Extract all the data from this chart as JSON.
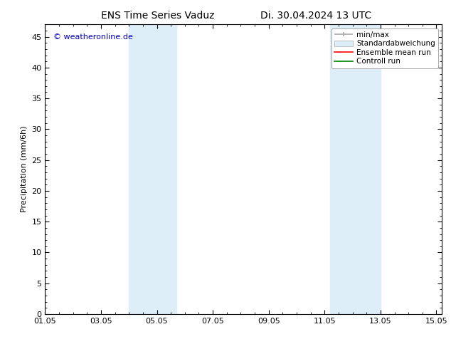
{
  "title_left": "ENS Time Series Vaduz",
  "title_right": "Di. 30.04.2024 13 UTC",
  "ylabel": "Precipitation (mm/6h)",
  "watermark": "© weatheronline.de",
  "watermark_color": "#0000cc",
  "xmin": 1.0,
  "xmax": 15.2,
  "ymin": 0,
  "ymax": 47,
  "yticks": [
    0,
    5,
    10,
    15,
    20,
    25,
    30,
    35,
    40,
    45
  ],
  "xtick_labels": [
    "01.05",
    "03.05",
    "05.05",
    "07.05",
    "09.05",
    "11.05",
    "13.05",
    "15.05"
  ],
  "xtick_positions": [
    1.0,
    3.0,
    5.0,
    7.0,
    9.0,
    11.0,
    13.0,
    15.0
  ],
  "shaded_regions": [
    {
      "xmin": 4.0,
      "xmax": 5.7,
      "color": "#ddeef8"
    },
    {
      "xmin": 11.2,
      "xmax": 13.0,
      "color": "#ddeef8"
    }
  ],
  "legend_items": [
    {
      "label": "min/max",
      "color": "#aaaaaa",
      "lw": 1.2
    },
    {
      "label": "Standardabweichung",
      "color": "#c8dff0"
    },
    {
      "label": "Ensemble mean run",
      "color": "#ff0000",
      "lw": 1.2
    },
    {
      "label": "Controll run",
      "color": "#008000",
      "lw": 1.2
    }
  ],
  "bg_color": "#ffffff",
  "plot_bg_color": "#ffffff",
  "tick_color": "#000000",
  "title_fontsize": 10,
  "label_fontsize": 8,
  "tick_fontsize": 8,
  "legend_fontsize": 7.5
}
